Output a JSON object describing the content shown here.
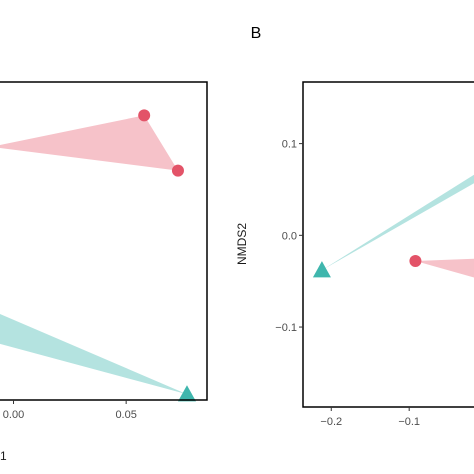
{
  "chart_data": [
    {
      "panel_label": "",
      "type": "scatter",
      "title": "",
      "xlabel": "1",
      "ylabel": "",
      "xlim": [
        -0.006,
        0.085
      ],
      "ylim": [
        -0.12,
        0.13
      ],
      "x_ticks": [
        0.0,
        0.05
      ],
      "x_tick_labels": [
        "0.00",
        "0.05"
      ],
      "y_ticks": [],
      "y_tick_labels": [],
      "grid": false,
      "series": [
        {
          "marker": "circle",
          "color": "#e35368",
          "hull_fill": "#f6c2c9",
          "points": [
            [
              -0.01,
              0.08
            ],
            [
              0.058,
              0.105
            ],
            [
              0.073,
              0.061
            ]
          ]
        },
        {
          "marker": "triangle",
          "color": "#3fb6ad",
          "hull_fill": "#b4e3e0",
          "points": [
            [
              -0.01,
              -0.05
            ],
            [
              0.077,
              -0.117
            ],
            [
              -0.01,
              -0.075
            ]
          ]
        }
      ]
    },
    {
      "panel_label": "B",
      "type": "scatter",
      "title": "",
      "xlabel": "",
      "ylabel": "NMDS2",
      "xlim": [
        -0.235,
        0.005
      ],
      "ylim": [
        -0.185,
        0.165
      ],
      "x_ticks": [
        -0.2,
        -0.1
      ],
      "x_tick_labels": [
        "−0.2",
        "−0.1"
      ],
      "y_ticks": [
        0.1,
        0.0,
        -0.1
      ],
      "y_tick_labels": [
        "0.1",
        "0.0",
        "−0.1"
      ],
      "grid": false,
      "series": [
        {
          "marker": "triangle",
          "color": "#3fb6ad",
          "hull_fill": "#b4e3e0",
          "points": [
            [
              -0.212,
              -0.038
            ],
            [
              -0.0,
              0.075
            ],
            [
              -0.0,
              0.065
            ]
          ]
        },
        {
          "marker": "circle",
          "color": "#e35368",
          "hull_fill": "#f6c2c9",
          "points": [
            [
              -0.092,
              -0.028
            ],
            [
              -0.0,
              -0.025
            ],
            [
              -0.0,
              -0.05
            ]
          ]
        }
      ]
    }
  ]
}
